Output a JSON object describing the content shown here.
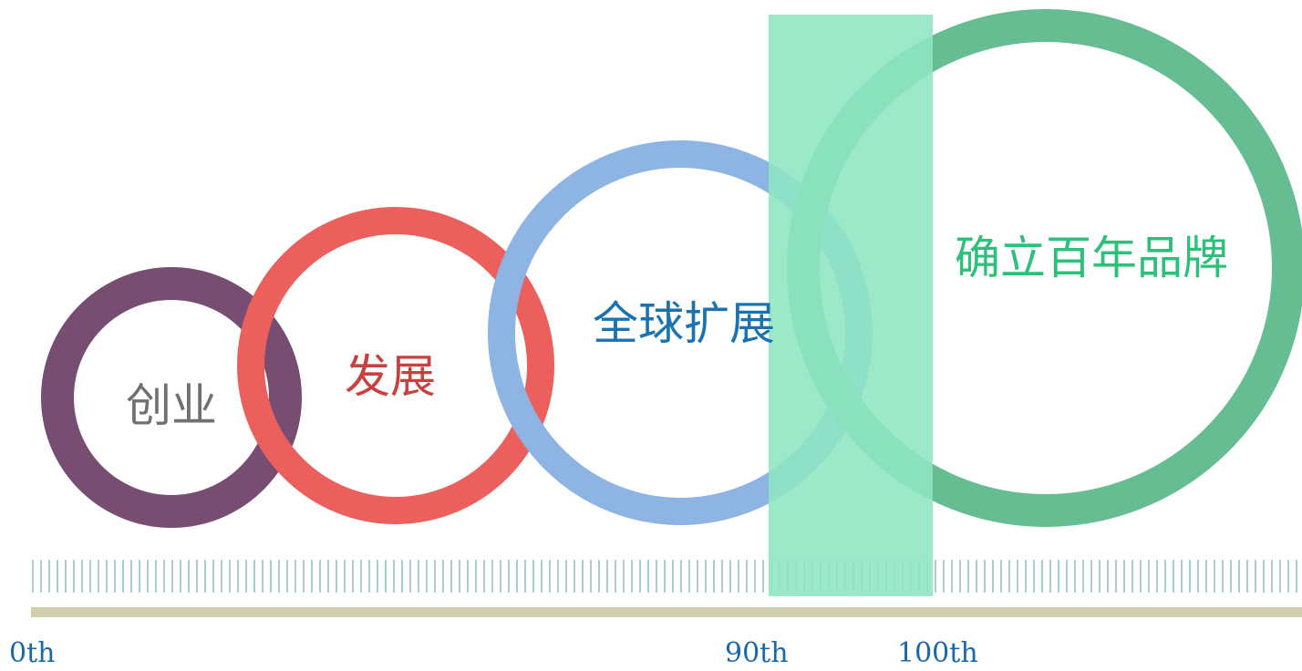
{
  "stages": [
    {
      "label": "创业",
      "ring_color": "#774d72",
      "text_color": "#707070"
    },
    {
      "label": "发展",
      "ring_color": "#eb5f5d",
      "text_color": "#c8413e"
    },
    {
      "label": "全球扩展",
      "ring_color": "#8db4e2",
      "text_color": "#1a72b0"
    },
    {
      "label": "确立百年品牌",
      "ring_color": "#67bd92",
      "text_color": "#2cc07a"
    }
  ],
  "highlight_band": {
    "color": "#8ee6c3"
  },
  "timeline": {
    "bar_color": "#d2cfae",
    "tick_color": "#a9cfcf",
    "labels": [
      "0th",
      "90th",
      "100th"
    ]
  }
}
